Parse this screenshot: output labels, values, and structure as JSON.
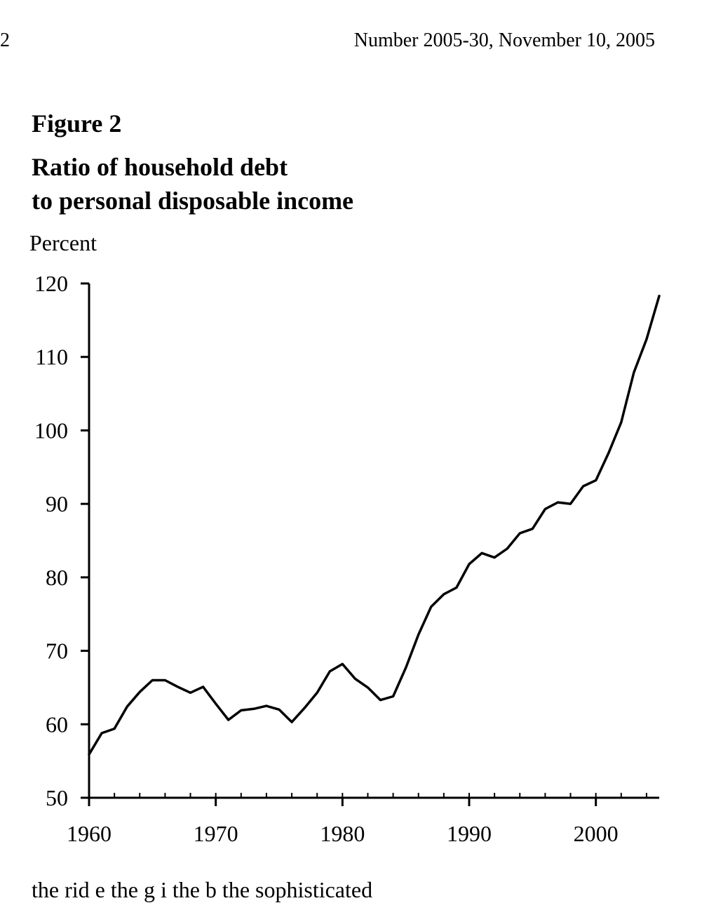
{
  "page": {
    "number": "2",
    "header": "Number 2005-30, November 10, 2005",
    "figure_label": "Figure 2",
    "figure_title_lines": [
      "Ratio of household debt",
      "to personal disposable income"
    ],
    "unit_label": "Percent",
    "footer_fragment": "the rid e the g i the b the sophisticated"
  },
  "chart_data": {
    "type": "line",
    "title": "Ratio of household debt to personal disposable income",
    "ylabel": "Percent",
    "xlabel": "",
    "xlim": [
      1960,
      2005
    ],
    "ylim": [
      50,
      120
    ],
    "x_ticks": [
      1960,
      1970,
      1980,
      1990,
      2000
    ],
    "y_ticks": [
      50,
      60,
      70,
      80,
      90,
      100,
      110,
      120
    ],
    "grid": false,
    "series": [
      {
        "color": "#000000",
        "x": [
          1960,
          1961,
          1962,
          1963,
          1964,
          1965,
          1966,
          1967,
          1968,
          1969,
          1970,
          1971,
          1972,
          1973,
          1974,
          1975,
          1976,
          1977,
          1978,
          1979,
          1980,
          1981,
          1982,
          1983,
          1984,
          1985,
          1986,
          1987,
          1988,
          1989,
          1990,
          1991,
          1992,
          1993,
          1994,
          1995,
          1996,
          1997,
          1998,
          1999,
          2000,
          2001,
          2002,
          2003,
          2004,
          2005
        ],
        "values": [
          55.9,
          58.8,
          59.4,
          62.4,
          64.4,
          66.0,
          66.0,
          65.1,
          64.3,
          65.1,
          62.8,
          60.6,
          61.9,
          62.1,
          62.5,
          62.0,
          60.3,
          62.2,
          64.3,
          67.2,
          68.2,
          66.2,
          65.0,
          63.3,
          63.8,
          67.7,
          72.2,
          76.0,
          77.7,
          78.6,
          81.8,
          83.3,
          82.7,
          83.9,
          86.0,
          86.6,
          89.3,
          90.2,
          90.0,
          92.4,
          93.2,
          96.9,
          101.1,
          107.9,
          112.4,
          118.3
        ]
      }
    ]
  },
  "style": {
    "ink": "#000000",
    "paper": "#ffffff"
  }
}
